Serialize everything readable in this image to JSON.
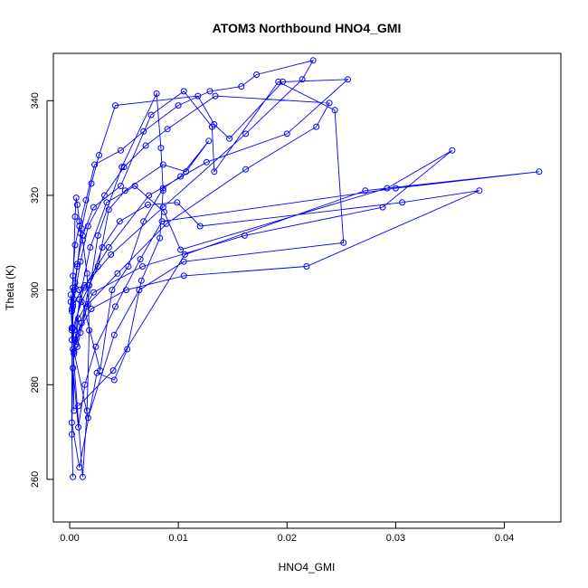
{
  "chart_data": {
    "type": "line",
    "title": "ATOM3 Northbound HNO4_GMI",
    "xlabel": "HNO4_GMI",
    "ylabel": "Theta (K)",
    "xlim": [
      -0.0015,
      0.0452
    ],
    "ylim": [
      251,
      350
    ],
    "xticks": [
      0.0,
      0.01,
      0.02,
      0.03,
      0.04
    ],
    "xtick_labels": [
      "0.00",
      "0.01",
      "0.02",
      "0.03",
      "0.04"
    ],
    "yticks": [
      260,
      280,
      300,
      320,
      340
    ],
    "ytick_labels": [
      "260",
      "280",
      "300",
      "320",
      "340"
    ],
    "marker": "open-circle",
    "grid": false,
    "legend": "none",
    "series_color": "#0000ff",
    "series": [
      {
        "x": [
          0.0003,
          0.0002,
          0.0003,
          0.0004,
          0.0003,
          0.0012,
          0.0016,
          0.0018,
          0.0016,
          0.0012,
          0.001,
          0.0009,
          0.0007,
          0.0006,
          0.0005,
          0.0003,
          0.0003,
          0.0011,
          0.0026,
          0.0036,
          0.0051,
          0.0086,
          0.0107,
          0.0128,
          0.0102,
          0.0086,
          0.0068,
          0.0054,
          0.0039,
          0.0028,
          0.0009,
          0.0005,
          0.0003,
          0.0002,
          0.0001,
          0.0001,
          0.0002,
          0.0004,
          0.0007,
          0.001,
          0.0016,
          0.0026,
          0.0048,
          0.008,
          0.0084,
          0.0086,
          0.0083,
          0.0066,
          0.0053,
          0.0041,
          0.0025,
          0.0009,
          0.0002,
          0.0002,
          0.0004,
          0.0007,
          0.0012,
          0.0022,
          0.0047,
          0.0075,
          0.0105,
          0.0131,
          0.0133,
          0.0192,
          0.0244,
          0.0252,
          0.0105,
          0.0064,
          0.0041,
          0.0017,
          0.0004,
          0.0002,
          0.0003,
          0.0005,
          0.0009,
          0.0015,
          0.0023,
          0.0047,
          0.0068,
          0.01,
          0.0129,
          0.0158,
          0.0172,
          0.0224,
          0.0214,
          0.0162,
          0.0086,
          0.0038,
          0.0014,
          0.0003,
          0.0007,
          0.0011,
          0.002,
          0.0027,
          0.0042,
          0.0118,
          0.0133,
          0.0147,
          0.0196,
          0.0256,
          0.02,
          0.0126,
          0.0073,
          0.0036,
          0.0013,
          0.0002,
          0.0004,
          0.001,
          0.0017,
          0.0032,
          0.005,
          0.007,
          0.009,
          0.0134,
          0.0239,
          0.0227,
          0.0162,
          0.0089,
          0.0044,
          0.0017,
          0.0005,
          0.0004,
          0.0009,
          0.0019,
          0.0034,
          0.006,
          0.0087,
          0.0102,
          0.0292,
          0.0352,
          0.0288,
          0.0161,
          0.0067,
          0.0022,
          0.0008,
          0.0006,
          0.0011,
          0.0018,
          0.003,
          0.0046,
          0.0072,
          0.0099,
          0.012,
          0.0306,
          0.0377,
          0.0218,
          0.0105,
          0.0052,
          0.002,
          0.0006,
          0.0003,
          0.0008,
          0.0014,
          0.0024,
          0.0042,
          0.0065,
          0.0085,
          0.03,
          0.0432,
          0.0272,
          0.0106,
          0.004,
          0.0008
        ],
        "y": [
          260.5,
          269.5,
          283.5,
          274.5,
          287.5,
          260.5,
          274.5,
          291.5,
          303.5,
          310.5,
          312.0,
          314.5,
          318.0,
          319.5,
          315.5,
          300.5,
          292.0,
          297.5,
          305.0,
          317.0,
          321.0,
          326.5,
          325.0,
          331.5,
          324.0,
          321.5,
          314.5,
          305.0,
          300.0,
          283.0,
          300.0,
          301.5,
          296.5,
          295.5,
          297.5,
          299.0,
          292.0,
          286.5,
          288.0,
          291.0,
          296.5,
          311.5,
          326.0,
          341.5,
          330.0,
          321.0,
          311.0,
          302.0,
          287.5,
          281.0,
          282.5,
          262.5,
          272.0,
          291.5,
          300.0,
          305.5,
          311.5,
          317.5,
          322.0,
          337.0,
          342.0,
          334.5,
          325.0,
          344.0,
          338.0,
          310.0,
          306.0,
          300.0,
          290.5,
          273.0,
          287.0,
          296.0,
          303.0,
          309.5,
          313.5,
          319.0,
          326.5,
          329.5,
          333.5,
          339.0,
          342.0,
          343.0,
          345.5,
          348.5,
          344.5,
          333.0,
          317.5,
          307.5,
          301.0,
          297.0,
          305.0,
          313.0,
          322.5,
          328.5,
          339.0,
          341.0,
          335.0,
          332.0,
          344.0,
          344.5,
          333.0,
          327.0,
          320.0,
          309.0,
          300.5,
          289.5,
          298.0,
          306.0,
          313.5,
          320.0,
          326.0,
          330.5,
          334.0,
          341.0,
          339.5,
          334.5,
          325.5,
          314.0,
          303.5,
          297.0,
          289.5,
          287.0,
          298.0,
          309.0,
          318.5,
          322.0,
          316.5,
          308.5,
          321.5,
          329.5,
          317.5,
          311.5,
          305.0,
          299.5,
          294.0,
          288.5,
          293.0,
          301.0,
          309.0,
          314.5,
          318.0,
          318.5,
          313.5,
          318.5,
          321.0,
          305.0,
          303.0,
          300.0,
          296.0,
          290.5,
          283.5,
          271.0,
          280.0,
          288.0,
          296.5,
          306.5,
          314.5,
          321.5,
          325.0,
          321.0,
          307.5,
          283.0,
          275.5
        ]
      }
    ]
  }
}
